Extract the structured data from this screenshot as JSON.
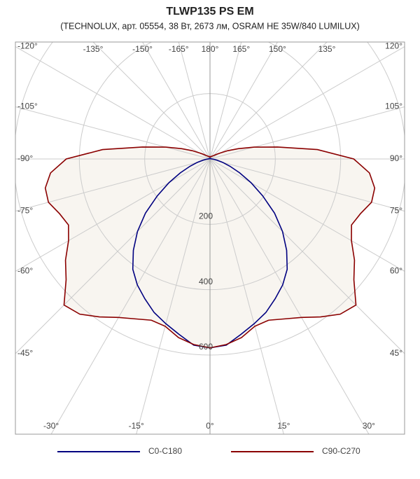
{
  "chart_data": {
    "type": "polar",
    "title": "TLWP135 PS EM",
    "subtitle": "(TECHNOLUX, арт. 05554, 38 Вт, 2673 лм, OSRAM HE 35W/840 LUMILUX)",
    "x": [
      -180,
      -175,
      -170,
      -165,
      -160,
      -155,
      -150,
      -145,
      -140,
      -135,
      -130,
      -125,
      -120,
      -115,
      -110,
      -105,
      -100,
      -95,
      -90,
      -85,
      -80,
      -75,
      -70,
      -65,
      -60,
      -55,
      -50,
      -45,
      -40,
      -35,
      -30,
      -25,
      -20,
      -15,
      -10,
      -5,
      0,
      5,
      10,
      15,
      20,
      25,
      30,
      35,
      40,
      45,
      50,
      55,
      60,
      65,
      70,
      75,
      80,
      85,
      90,
      95,
      100,
      105,
      110,
      115,
      120,
      125,
      130,
      135,
      140,
      145,
      150,
      155,
      160,
      165,
      170,
      175,
      180
    ],
    "series": [
      {
        "name": "C0-C180",
        "color": "#000080",
        "values": [
          2,
          2,
          2,
          2,
          2,
          2,
          2,
          2,
          2,
          2,
          2,
          2,
          2,
          2,
          2,
          3,
          3,
          4,
          6,
          12,
          22,
          40,
          65,
          100,
          145,
          197,
          258,
          314,
          365,
          412,
          445,
          472,
          500,
          522,
          545,
          572,
          578,
          572,
          545,
          522,
          500,
          472,
          445,
          412,
          365,
          314,
          258,
          197,
          145,
          100,
          65,
          40,
          22,
          12,
          6,
          4,
          3,
          3,
          2,
          2,
          2,
          2,
          2,
          2,
          2,
          2,
          2,
          2,
          2,
          2,
          2,
          2,
          2
        ]
      },
      {
        "name": "C90-C270",
        "color": "#8b0000",
        "values": [
          6,
          6,
          7,
          7,
          8,
          8,
          9,
          10,
          12,
          14,
          18,
          25,
          37,
          60,
          92,
          140,
          210,
          330,
          440,
          490,
          512,
          512,
          490,
          478,
          500,
          540,
          575,
          632,
          620,
          590,
          560,
          540,
          525,
          530,
          555,
          570,
          578,
          570,
          555,
          530,
          525,
          540,
          560,
          590,
          620,
          632,
          575,
          540,
          500,
          478,
          490,
          512,
          512,
          490,
          440,
          330,
          210,
          140,
          92,
          60,
          37,
          25,
          18,
          14,
          12,
          10,
          9,
          8,
          8,
          7,
          7,
          6,
          6
        ]
      }
    ],
    "rlim": [
      0,
      600
    ],
    "rticks": [
      200,
      400,
      600
    ],
    "angle_ticks": [
      {
        "value": -165,
        "label": "-165°"
      },
      {
        "value": -150,
        "label": "-150°"
      },
      {
        "value": -135,
        "label": "-135°"
      },
      {
        "value": -120,
        "label": "-120°"
      },
      {
        "value": -105,
        "label": "-105°"
      },
      {
        "value": -90,
        "label": "-90°"
      },
      {
        "value": -75,
        "label": "-75°"
      },
      {
        "value": -60,
        "label": "-60°"
      },
      {
        "value": -45,
        "label": "-45°"
      },
      {
        "value": -30,
        "label": "-30°"
      },
      {
        "value": -15,
        "label": "-15°"
      },
      {
        "value": 0,
        "label": "0°"
      },
      {
        "value": 15,
        "label": "15°"
      },
      {
        "value": 30,
        "label": "30°"
      },
      {
        "value": 45,
        "label": "45°"
      },
      {
        "value": 60,
        "label": "60°"
      },
      {
        "value": 75,
        "label": "75°"
      },
      {
        "value": 90,
        "label": "90°"
      },
      {
        "value": 105,
        "label": "105°"
      },
      {
        "value": 120,
        "label": "120°"
      },
      {
        "value": 135,
        "label": "135°"
      },
      {
        "value": 150,
        "label": "150°"
      },
      {
        "value": 165,
        "label": "165°"
      },
      {
        "value": 180,
        "label": "180°"
      }
    ],
    "fill_color": "#f8f5f0"
  }
}
